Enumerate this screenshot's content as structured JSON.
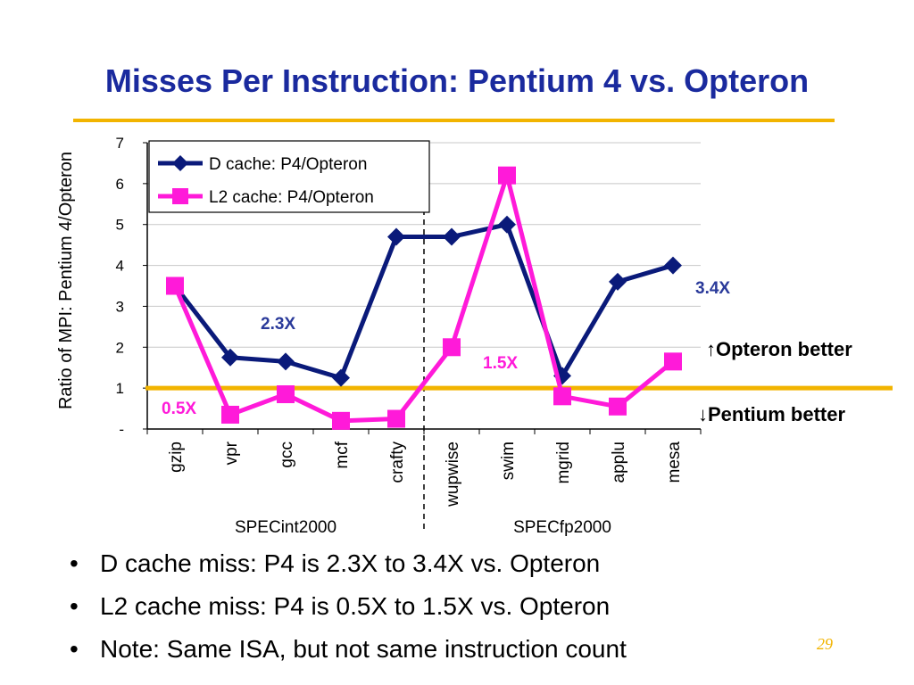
{
  "slide": {
    "title": "Misses Per Instruction: Pentium 4 vs. Opteron",
    "page_number": "29",
    "bullets": [
      "D cache miss: P4 is 2.3X to 3.4X vs. Opteron",
      "L2 cache miss: P4 is 0.5X to 1.5X vs. Opteron",
      "Note: Same ISA, but not same instruction count"
    ]
  },
  "chart_data": {
    "type": "line",
    "ylabel": "Ratio of MPI: Pentium 4/Opteron",
    "xlabel": "",
    "ylim": [
      0,
      7
    ],
    "y_ticks": [
      {
        "value": 0,
        "label": "-"
      },
      {
        "value": 1,
        "label": "1"
      },
      {
        "value": 2,
        "label": "2"
      },
      {
        "value": 3,
        "label": "3"
      },
      {
        "value": 4,
        "label": "4"
      },
      {
        "value": 5,
        "label": "5"
      },
      {
        "value": 6,
        "label": "6"
      },
      {
        "value": 7,
        "label": "7"
      }
    ],
    "categories": [
      "gzip",
      "vpr",
      "gcc",
      "mcf",
      "crafty",
      "wupwise",
      "swim",
      "mgrid",
      "applu",
      "mesa"
    ],
    "groups": [
      {
        "label": "SPECint2000",
        "categories": [
          "gzip",
          "vpr",
          "gcc",
          "mcf",
          "crafty"
        ]
      },
      {
        "label": "SPECfp2000",
        "categories": [
          "wupwise",
          "swim",
          "mgrid",
          "applu",
          "mesa"
        ]
      }
    ],
    "series": [
      {
        "name": "D cache:   P4/Opteron",
        "color": "#0a1a7a",
        "marker": "diamond",
        "values": [
          3.5,
          1.75,
          1.65,
          1.25,
          4.7,
          4.7,
          5.0,
          1.3,
          3.6,
          4.0
        ]
      },
      {
        "name": "L2 cache: P4/Opteron",
        "color": "#ff1ad9",
        "marker": "square",
        "values": [
          3.5,
          0.35,
          0.85,
          0.2,
          0.25,
          2.0,
          6.2,
          0.8,
          0.55,
          1.65
        ]
      }
    ],
    "reference_line": {
      "value": 1.0,
      "color": "#f2b400"
    },
    "legend_position": "top-left",
    "grid": "horizontal",
    "annotations": [
      {
        "text": "2.3X",
        "color": "#2a3a9a"
      },
      {
        "text": "3.4X",
        "color": "#2a3a9a"
      },
      {
        "text": "1.5X",
        "color": "#ff1ad9"
      },
      {
        "text": "0.5X",
        "color": "#ff1ad9"
      },
      {
        "text": "↑Opteron better",
        "color": "#000000"
      },
      {
        "text": "↓Pentium better",
        "color": "#000000"
      }
    ]
  }
}
